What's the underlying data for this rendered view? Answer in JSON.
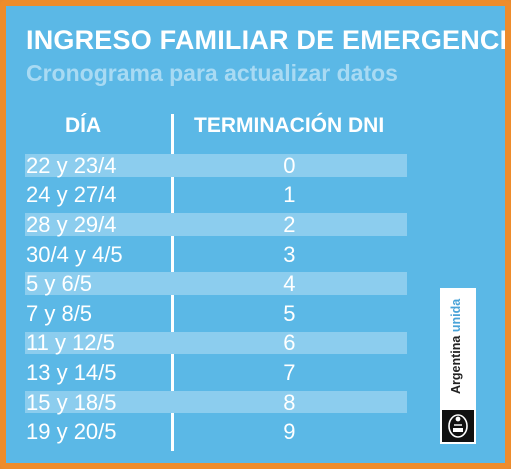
{
  "header": {
    "title": "INGRESO FAMILIAR DE EMERGENCIA",
    "subtitle": "Cronograma para actualizar datos"
  },
  "table": {
    "col_dia": "DÍA",
    "col_dni": "TERMINACIÓN DNI",
    "rows": [
      {
        "dia": "22 y 23/4",
        "dni": "0"
      },
      {
        "dia": "24 y 27/4",
        "dni": "1"
      },
      {
        "dia": "28 y 29/4",
        "dni": "2"
      },
      {
        "dia": "30/4 y 4/5",
        "dni": "3"
      },
      {
        "dia": "5 y 6/5",
        "dni": "4"
      },
      {
        "dia": "7 y 8/5",
        "dni": "5"
      },
      {
        "dia": "11 y 12/5",
        "dni": "6"
      },
      {
        "dia": "13 y 14/5",
        "dni": "7"
      },
      {
        "dia": "15 y 18/5",
        "dni": "8"
      },
      {
        "dia": "19 y 20/5",
        "dni": "9"
      }
    ]
  },
  "logo": {
    "word1": "Argentina",
    "word2": "unida"
  },
  "colors": {
    "background": "#5bb8e6",
    "frame": "#ee8c2b",
    "row_shade": "#8ccdee",
    "subtitle": "#a8daf3"
  }
}
